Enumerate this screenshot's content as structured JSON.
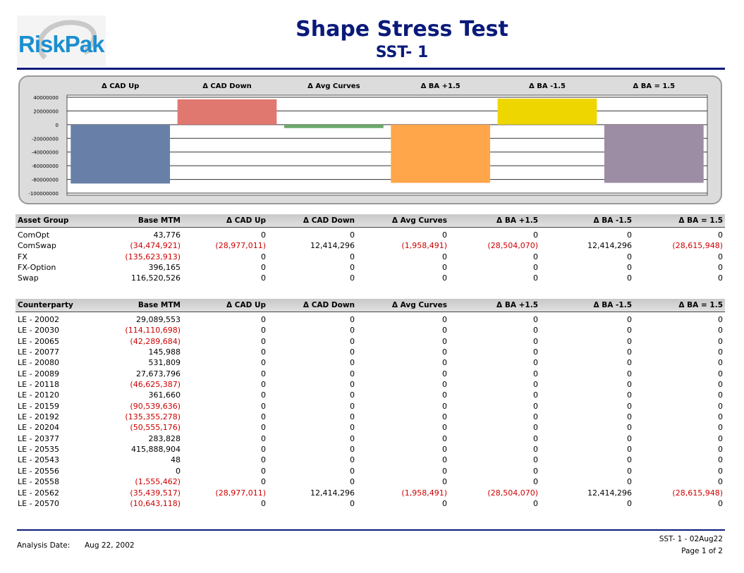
{
  "header": {
    "logo_text": "RiskPak",
    "title": "Shape Stress Test",
    "subtitle": "SST- 1"
  },
  "scenarios": [
    "Δ CAD Up",
    "Δ CAD Down",
    "Δ Avg Curves",
    "Δ BA +1.5",
    "Δ BA -1.5",
    "Δ BA = 1.5"
  ],
  "chart_data": {
    "type": "bar",
    "categories": [
      "Δ CAD Up",
      "Δ CAD Down",
      "Δ Avg Curves",
      "Δ BA +1.5",
      "Δ BA -1.5",
      "Δ BA = 1.5"
    ],
    "values": [
      -86000000,
      37000000,
      -5000000,
      -85000000,
      38000000,
      -85000000
    ],
    "colors": [
      "#6880a8",
      "#e07870",
      "#6aa86a",
      "#ffa64a",
      "#eed600",
      "#9c8ca4"
    ],
    "ylim": [
      -100000000,
      40000000
    ],
    "yticks": [
      40000000,
      20000000,
      0,
      -20000000,
      -40000000,
      -60000000,
      -80000000,
      -100000000
    ],
    "ytick_labels": [
      "40000000",
      "20000000",
      "0",
      "-20000000",
      "-40000000",
      "-60000000",
      "-80000000",
      "-100000000"
    ],
    "grid": true,
    "title": "",
    "xlabel": "",
    "ylabel": ""
  },
  "asset_table": {
    "headers": [
      "Asset Group",
      "Base MTM",
      "Δ CAD Up",
      "Δ CAD Down",
      "Δ Avg Curves",
      "Δ BA +1.5",
      "Δ BA -1.5",
      "Δ BA = 1.5"
    ],
    "rows": [
      [
        "ComOpt",
        "43,776",
        "0",
        "0",
        "0",
        "0",
        "0",
        "0"
      ],
      [
        "ComSwap",
        "(34,474,921)",
        "(28,977,011)",
        "12,414,296",
        "(1,958,491)",
        "(28,504,070)",
        "12,414,296",
        "(28,615,948)"
      ],
      [
        "FX",
        "(135,623,913)",
        "0",
        "0",
        "0",
        "0",
        "0",
        "0"
      ],
      [
        "FX-Option",
        "396,165",
        "0",
        "0",
        "0",
        "0",
        "0",
        "0"
      ],
      [
        "Swap",
        "116,520,526",
        "0",
        "0",
        "0",
        "0",
        "0",
        "0"
      ]
    ]
  },
  "counterparty_table": {
    "headers": [
      "Counterparty",
      "Base MTM",
      "Δ CAD Up",
      "Δ CAD Down",
      "Δ Avg Curves",
      "Δ BA +1.5",
      "Δ BA -1.5",
      "Δ BA = 1.5"
    ],
    "rows": [
      [
        "LE - 20002",
        "29,089,553",
        "0",
        "0",
        "0",
        "0",
        "0",
        "0"
      ],
      [
        "LE - 20030",
        "(114,110,698)",
        "0",
        "0",
        "0",
        "0",
        "0",
        "0"
      ],
      [
        "LE - 20065",
        "(42,289,684)",
        "0",
        "0",
        "0",
        "0",
        "0",
        "0"
      ],
      [
        "LE - 20077",
        "145,988",
        "0",
        "0",
        "0",
        "0",
        "0",
        "0"
      ],
      [
        "LE - 20080",
        "531,809",
        "0",
        "0",
        "0",
        "0",
        "0",
        "0"
      ],
      [
        "LE - 20089",
        "27,673,796",
        "0",
        "0",
        "0",
        "0",
        "0",
        "0"
      ],
      [
        "LE - 20118",
        "(46,625,387)",
        "0",
        "0",
        "0",
        "0",
        "0",
        "0"
      ],
      [
        "LE - 20120",
        "361,660",
        "0",
        "0",
        "0",
        "0",
        "0",
        "0"
      ],
      [
        "LE - 20159",
        "(90,539,636)",
        "0",
        "0",
        "0",
        "0",
        "0",
        "0"
      ],
      [
        "LE - 20192",
        "(135,355,278)",
        "0",
        "0",
        "0",
        "0",
        "0",
        "0"
      ],
      [
        "LE - 20204",
        "(50,555,176)",
        "0",
        "0",
        "0",
        "0",
        "0",
        "0"
      ],
      [
        "LE - 20377",
        "283,828",
        "0",
        "0",
        "0",
        "0",
        "0",
        "0"
      ],
      [
        "LE - 20535",
        "415,888,904",
        "0",
        "0",
        "0",
        "0",
        "0",
        "0"
      ],
      [
        "LE - 20543",
        "48",
        "0",
        "0",
        "0",
        "0",
        "0",
        "0"
      ],
      [
        "LE - 20556",
        "0",
        "0",
        "0",
        "0",
        "0",
        "0",
        "0"
      ],
      [
        "LE - 20558",
        "(1,555,462)",
        "0",
        "0",
        "0",
        "0",
        "0",
        "0"
      ],
      [
        "LE - 20562",
        "(35,439,517)",
        "(28,977,011)",
        "12,414,296",
        "(1,958,491)",
        "(28,504,070)",
        "12,414,296",
        "(28,615,948)"
      ],
      [
        "LE - 20570",
        "(10,643,118)",
        "0",
        "0",
        "0",
        "0",
        "0",
        "0"
      ]
    ]
  },
  "footer": {
    "analysis_label": "Analysis Date:",
    "analysis_date": "Aug 22, 2002",
    "report_id": "SST- 1 - 02Aug22",
    "page": "Page 1 of 2"
  }
}
